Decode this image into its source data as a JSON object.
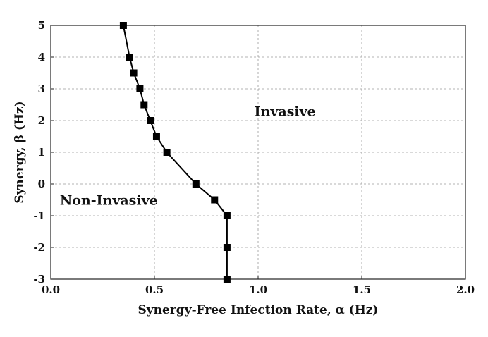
{
  "chart_data": {
    "type": "line",
    "xlabel": "Synergy-Free Infection Rate, α (Hz)",
    "ylabel": "Synergy, β (Hz)",
    "xlim": [
      0.0,
      2.0
    ],
    "ylim": [
      -3,
      5
    ],
    "xticks": [
      "0.0",
      "0.5",
      "1.0",
      "1.5",
      "2.0"
    ],
    "yticks": [
      "-3",
      "-2",
      "-1",
      "0",
      "1",
      "2",
      "3",
      "4",
      "5"
    ],
    "grid": true,
    "series": [
      {
        "x": [
          0.35,
          0.38,
          0.4,
          0.43,
          0.45,
          0.48,
          0.51,
          0.56,
          0.7,
          0.79,
          0.85,
          0.85,
          0.85
        ],
        "y": [
          5.0,
          4.0,
          3.5,
          3.0,
          2.5,
          2.0,
          1.5,
          1.0,
          0.0,
          -0.5,
          -1.0,
          -2.0,
          -3.0
        ],
        "marker": "square",
        "color": "#000000"
      }
    ],
    "annotations": [
      {
        "text": "Invasive",
        "x": 1.13,
        "y": 2.3
      },
      {
        "text": "Non-Invasive",
        "x": 0.28,
        "y": -0.5
      }
    ]
  }
}
